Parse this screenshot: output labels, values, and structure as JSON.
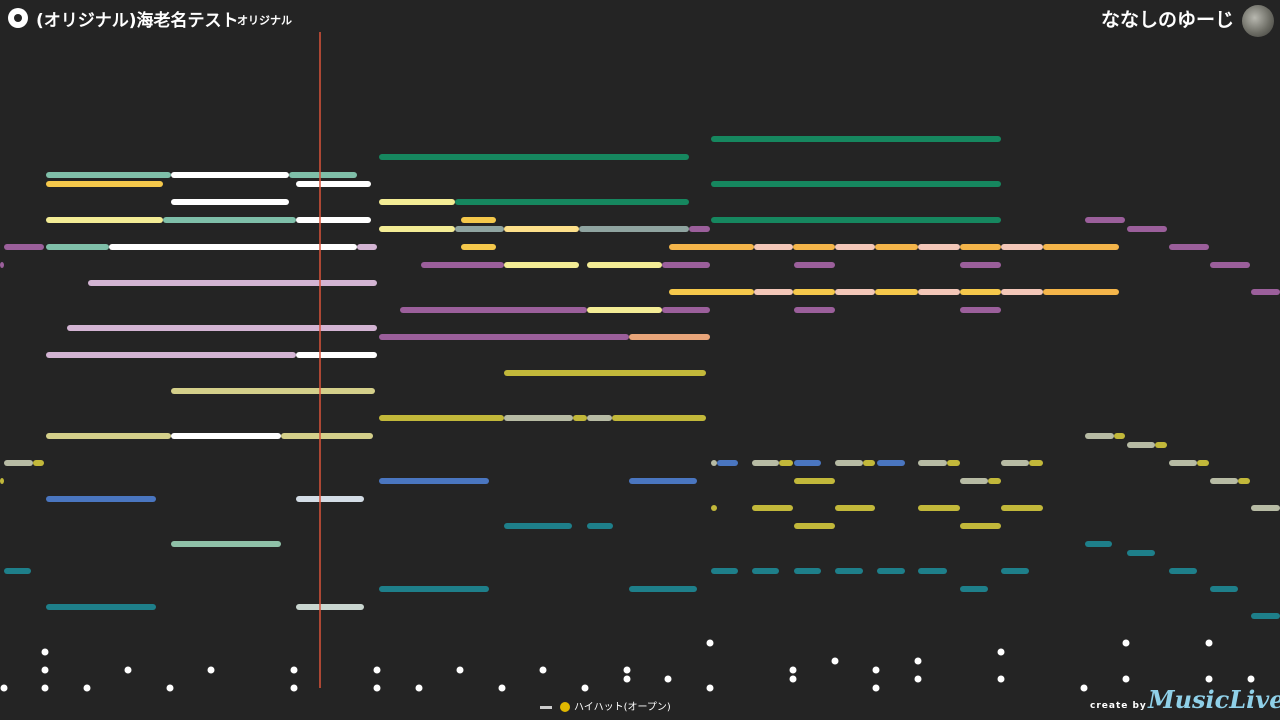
{
  "header": {
    "title": "(オリジナル)海老名テスト",
    "subtitle": "オリジナル",
    "user_name": "ななしのゆーじ"
  },
  "legend": {
    "label": "ハイハット(オープン)"
  },
  "footer": {
    "credit_label": "create by",
    "brand": "MusicLive"
  },
  "colors": {
    "background": "#242424",
    "playhead": "#d9533a",
    "track_colors": [
      "#7fbfa9",
      "#f5c84b",
      "#ffffff",
      "#f0e68c",
      "#9b5f9b",
      "#d8bfd8",
      "#e3d99a",
      "#1f8a63",
      "#b7b7a4",
      "#e8a57a",
      "#c8c23a",
      "#4a76c0",
      "#8fc1a8",
      "#1e7f8a",
      "#fde08a"
    ]
  },
  "playhead": {
    "time": 0.25
  },
  "notes": [
    {
      "track": "t1",
      "segments": [
        [
          "#8fc9b0",
          0,
          0
        ],
        [
          "#fff",
          0,
          0
        ]
      ]
    }
  ]
}
